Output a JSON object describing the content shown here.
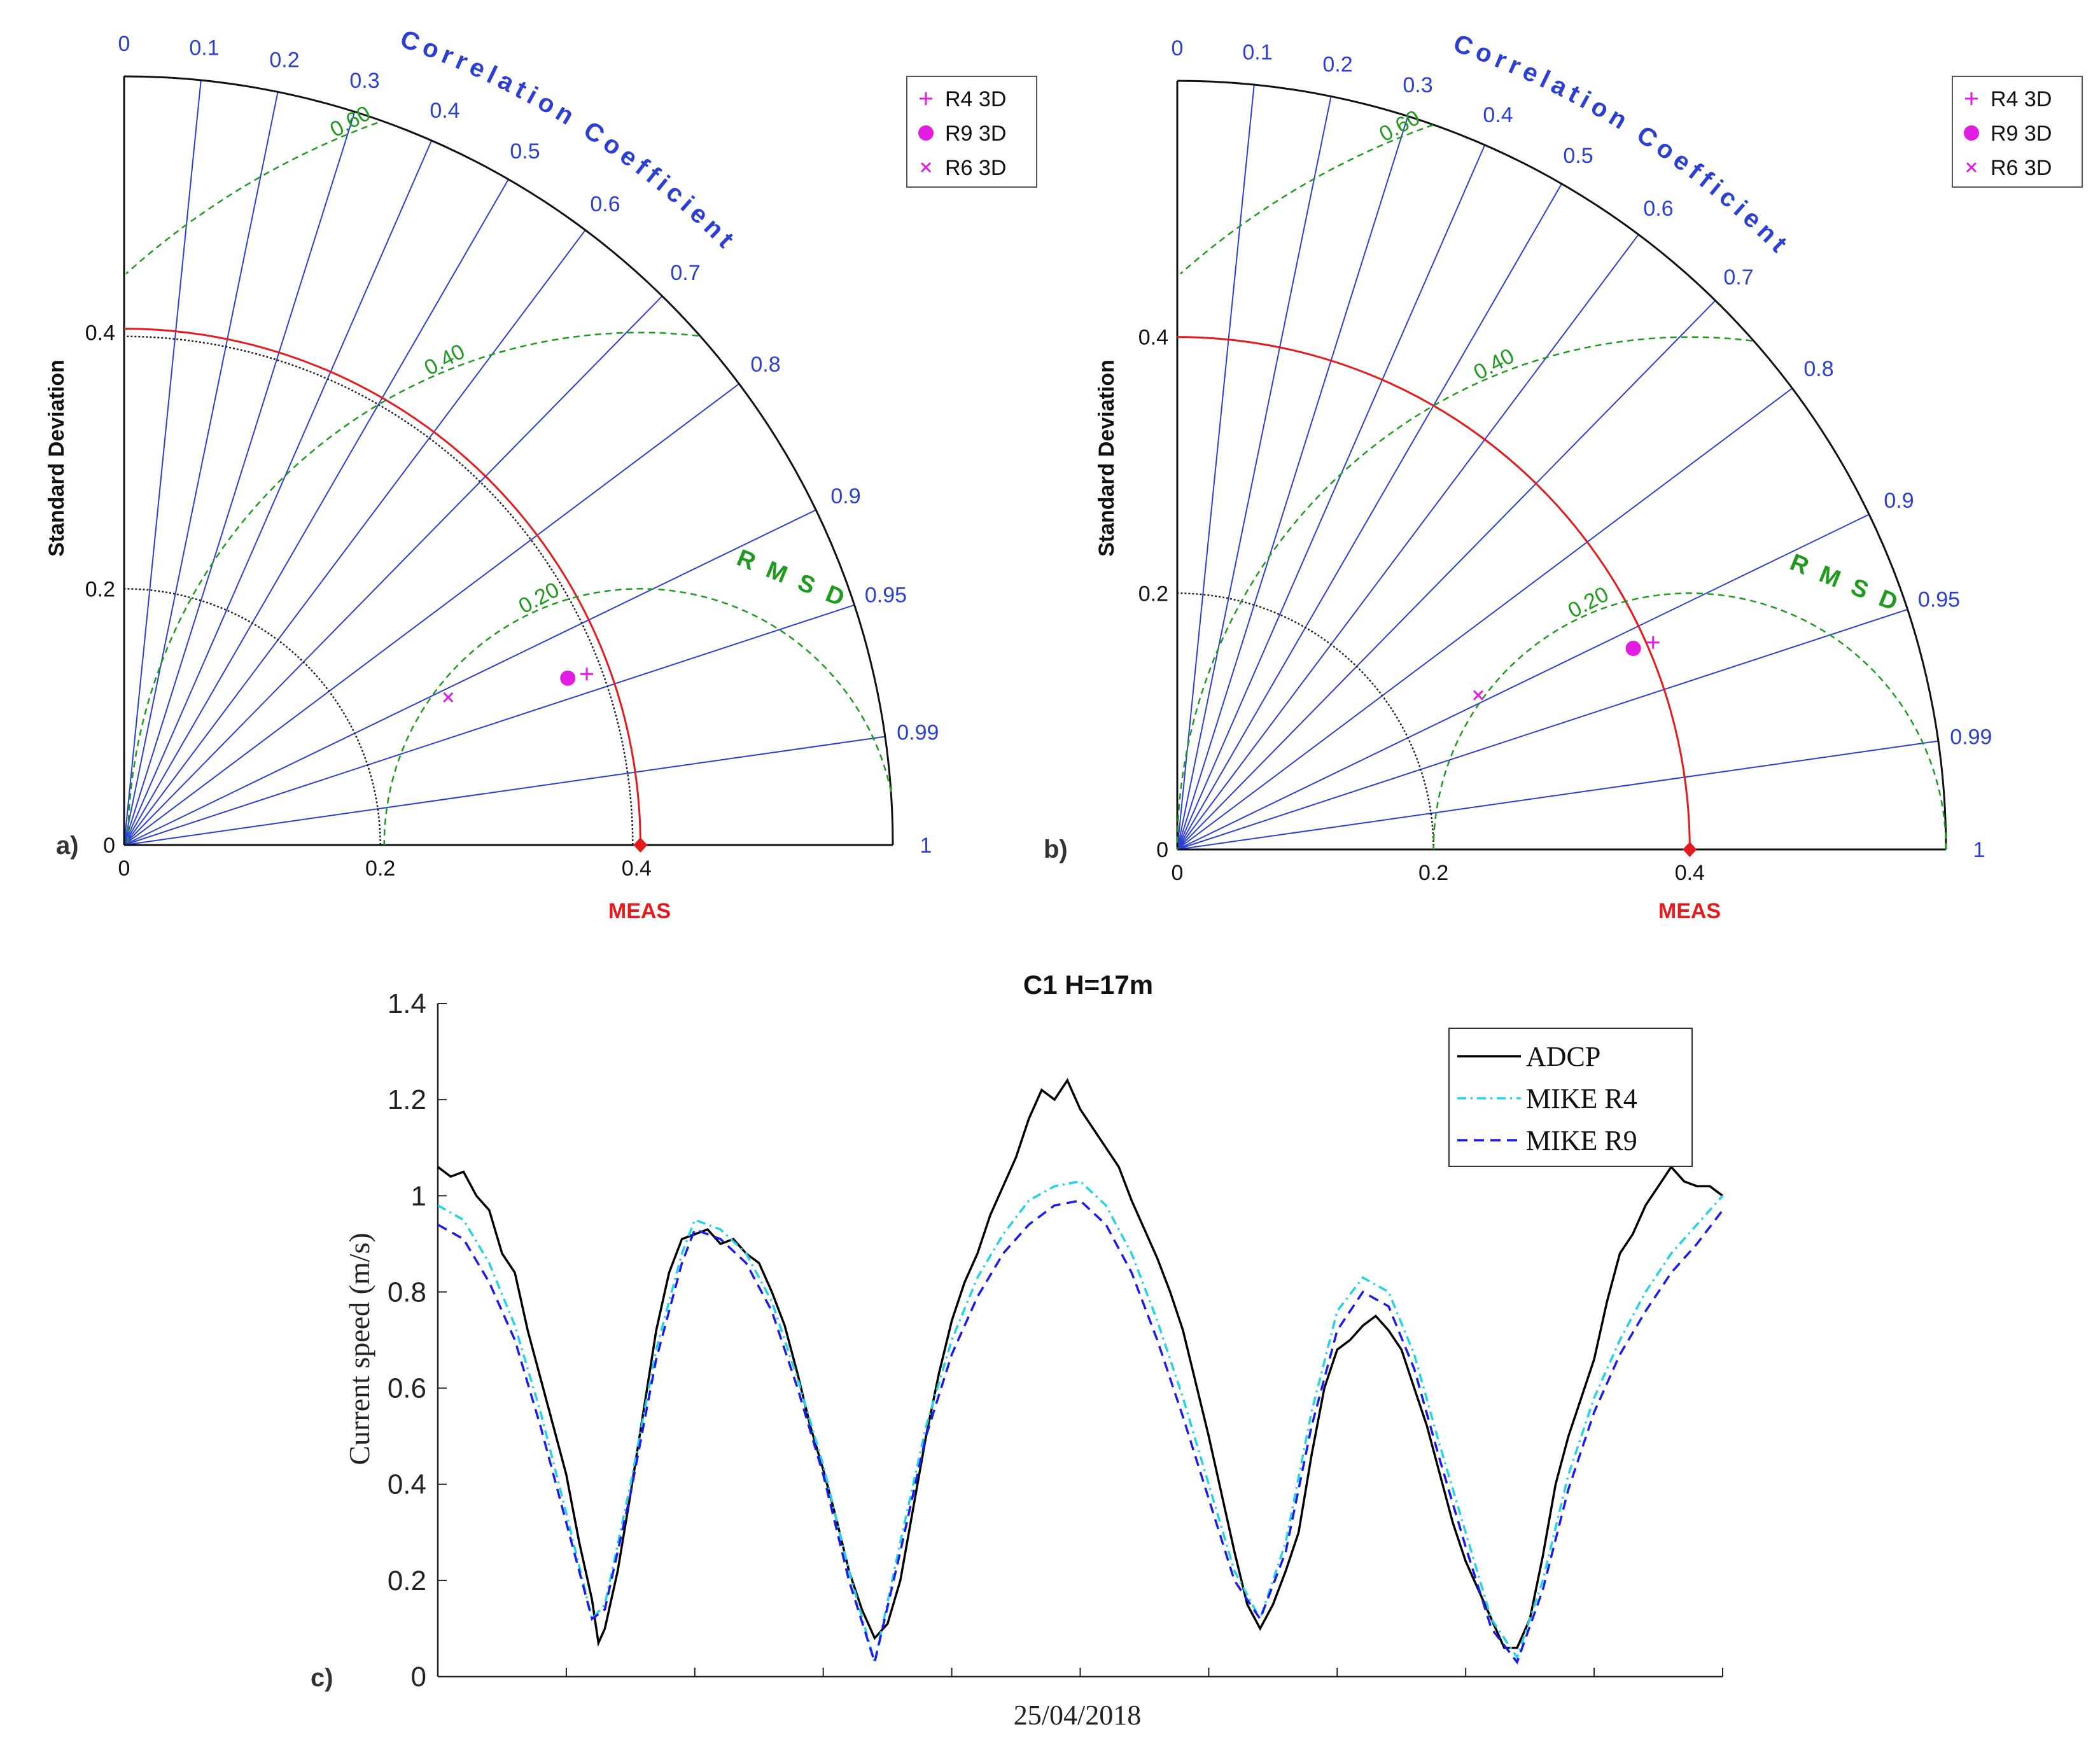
{
  "chart_data": [
    {
      "type": "taylor",
      "panel_label": "a)",
      "xlabel": "MEAS",
      "ylabel": "Standard Deviation",
      "correlation_label": "Correlation Coefficient",
      "rmsd_label": "RMSD",
      "std_ticks": [
        0,
        0.2,
        0.4
      ],
      "std_tick_labels": [
        "0",
        "0.2",
        "0.4"
      ],
      "std_max": 0.6,
      "correlation_ticks": [
        0,
        0.1,
        0.2,
        0.3,
        0.4,
        0.5,
        0.6,
        0.7,
        0.8,
        0.9,
        0.95,
        0.99,
        1
      ],
      "correlation_tick_labels": [
        "0",
        "0.1",
        "0.2",
        "0.3",
        "0.4",
        "0.5",
        "0.6",
        "0.7",
        "0.8",
        "0.9",
        "0.95",
        "0.99",
        "1"
      ],
      "rmsd_contours": [
        0.2,
        0.4,
        0.6
      ],
      "rmsd_labels": [
        "0.20",
        "0.40",
        "0.60"
      ],
      "reference_std": 0.403,
      "reference_std_secondary": 0.397,
      "series": [
        {
          "name": "R4 3D",
          "marker": "+",
          "std": 0.385,
          "corr": 0.938
        },
        {
          "name": "R9 3D",
          "marker": "o",
          "std": 0.37,
          "corr": 0.936
        },
        {
          "name": "R6 3D",
          "marker": "x",
          "std": 0.278,
          "corr": 0.91
        }
      ]
    },
    {
      "type": "taylor",
      "panel_label": "b)",
      "xlabel": "MEAS",
      "ylabel": "Standard Deviation",
      "correlation_label": "Correlation Coefficient",
      "rmsd_label": "RMSD",
      "std_ticks": [
        0,
        0.2,
        0.4
      ],
      "std_tick_labels": [
        "0",
        "0.2",
        "0.4"
      ],
      "std_max": 0.6,
      "correlation_ticks": [
        0,
        0.1,
        0.2,
        0.3,
        0.4,
        0.5,
        0.6,
        0.7,
        0.8,
        0.9,
        0.95,
        0.99,
        1
      ],
      "correlation_tick_labels": [
        "0",
        "0.1",
        "0.2",
        "0.3",
        "0.4",
        "0.5",
        "0.6",
        "0.7",
        "0.8",
        "0.9",
        "0.95",
        "0.99",
        "1"
      ],
      "rmsd_contours": [
        0.2,
        0.4,
        0.6
      ],
      "rmsd_labels": [
        "0.20",
        "0.40",
        "0.60"
      ],
      "reference_std": 0.4,
      "series": [
        {
          "name": "R4 3D",
          "marker": "+",
          "std": 0.405,
          "corr": 0.917
        },
        {
          "name": "R9 3D",
          "marker": "o",
          "std": 0.389,
          "corr": 0.915
        },
        {
          "name": "R6 3D",
          "marker": "x",
          "std": 0.264,
          "corr": 0.89
        }
      ]
    },
    {
      "type": "line",
      "panel_label": "c)",
      "title": "C1 H=17m",
      "xlabel": "25/04/2018",
      "ylabel": "Current speed (m/s)",
      "ylim": [
        0,
        1.4
      ],
      "y_ticks": [
        0,
        0.2,
        0.4,
        0.6,
        0.8,
        1,
        1.2,
        1.4
      ],
      "y_tick_labels": [
        "0",
        "0.2",
        "0.4",
        "0.6",
        "0.8",
        "1",
        "1.2",
        "1.4"
      ],
      "x_minor_tick_count": 10,
      "series": [
        {
          "name": "ADCP",
          "color": "#000000",
          "style": "solid",
          "points": [
            [
              0,
              1.06
            ],
            [
              0.01,
              1.04
            ],
            [
              0.02,
              1.05
            ],
            [
              0.03,
              1.0
            ],
            [
              0.04,
              0.97
            ],
            [
              0.05,
              0.88
            ],
            [
              0.06,
              0.84
            ],
            [
              0.07,
              0.72
            ],
            [
              0.08,
              0.62
            ],
            [
              0.09,
              0.52
            ],
            [
              0.1,
              0.42
            ],
            [
              0.11,
              0.28
            ],
            [
              0.12,
              0.16
            ],
            [
              0.125,
              0.07
            ],
            [
              0.13,
              0.1
            ],
            [
              0.14,
              0.22
            ],
            [
              0.15,
              0.38
            ],
            [
              0.16,
              0.55
            ],
            [
              0.17,
              0.72
            ],
            [
              0.18,
              0.84
            ],
            [
              0.19,
              0.91
            ],
            [
              0.2,
              0.92
            ],
            [
              0.21,
              0.93
            ],
            [
              0.22,
              0.9
            ],
            [
              0.23,
              0.91
            ],
            [
              0.24,
              0.88
            ],
            [
              0.25,
              0.86
            ],
            [
              0.26,
              0.8
            ],
            [
              0.27,
              0.73
            ],
            [
              0.28,
              0.63
            ],
            [
              0.29,
              0.52
            ],
            [
              0.3,
              0.43
            ],
            [
              0.31,
              0.33
            ],
            [
              0.32,
              0.22
            ],
            [
              0.33,
              0.14
            ],
            [
              0.34,
              0.08
            ],
            [
              0.35,
              0.11
            ],
            [
              0.36,
              0.2
            ],
            [
              0.37,
              0.35
            ],
            [
              0.38,
              0.5
            ],
            [
              0.39,
              0.63
            ],
            [
              0.4,
              0.74
            ],
            [
              0.41,
              0.82
            ],
            [
              0.42,
              0.88
            ],
            [
              0.43,
              0.96
            ],
            [
              0.44,
              1.02
            ],
            [
              0.45,
              1.08
            ],
            [
              0.46,
              1.16
            ],
            [
              0.47,
              1.22
            ],
            [
              0.48,
              1.2
            ],
            [
              0.49,
              1.24
            ],
            [
              0.5,
              1.18
            ],
            [
              0.51,
              1.14
            ],
            [
              0.52,
              1.1
            ],
            [
              0.53,
              1.06
            ],
            [
              0.54,
              0.99
            ],
            [
              0.55,
              0.93
            ],
            [
              0.56,
              0.87
            ],
            [
              0.57,
              0.8
            ],
            [
              0.58,
              0.72
            ],
            [
              0.59,
              0.61
            ],
            [
              0.6,
              0.5
            ],
            [
              0.61,
              0.38
            ],
            [
              0.62,
              0.26
            ],
            [
              0.63,
              0.15
            ],
            [
              0.64,
              0.1
            ],
            [
              0.65,
              0.15
            ],
            [
              0.66,
              0.22
            ],
            [
              0.67,
              0.3
            ],
            [
              0.68,
              0.46
            ],
            [
              0.69,
              0.6
            ],
            [
              0.7,
              0.68
            ],
            [
              0.71,
              0.7
            ],
            [
              0.72,
              0.73
            ],
            [
              0.73,
              0.75
            ],
            [
              0.74,
              0.72
            ],
            [
              0.75,
              0.68
            ],
            [
              0.76,
              0.6
            ],
            [
              0.77,
              0.52
            ],
            [
              0.78,
              0.42
            ],
            [
              0.79,
              0.32
            ],
            [
              0.8,
              0.24
            ],
            [
              0.81,
              0.18
            ],
            [
              0.82,
              0.12
            ],
            [
              0.83,
              0.06
            ],
            [
              0.84,
              0.06
            ],
            [
              0.85,
              0.12
            ],
            [
              0.86,
              0.25
            ],
            [
              0.87,
              0.4
            ],
            [
              0.88,
              0.5
            ],
            [
              0.89,
              0.58
            ],
            [
              0.9,
              0.66
            ],
            [
              0.91,
              0.78
            ],
            [
              0.92,
              0.88
            ],
            [
              0.93,
              0.92
            ],
            [
              0.94,
              0.98
            ],
            [
              0.95,
              1.02
            ],
            [
              0.96,
              1.06
            ],
            [
              0.97,
              1.03
            ],
            [
              0.98,
              1.02
            ],
            [
              0.99,
              1.02
            ],
            [
              1,
              1.0
            ]
          ]
        },
        {
          "name": "MIKE R4",
          "color": "#22d3e6",
          "style": "dashdot",
          "points": [
            [
              0,
              0.98
            ],
            [
              0.02,
              0.95
            ],
            [
              0.04,
              0.86
            ],
            [
              0.06,
              0.73
            ],
            [
              0.08,
              0.55
            ],
            [
              0.1,
              0.34
            ],
            [
              0.12,
              0.12
            ],
            [
              0.13,
              0.15
            ],
            [
              0.15,
              0.4
            ],
            [
              0.17,
              0.68
            ],
            [
              0.19,
              0.88
            ],
            [
              0.2,
              0.95
            ],
            [
              0.22,
              0.93
            ],
            [
              0.24,
              0.88
            ],
            [
              0.26,
              0.78
            ],
            [
              0.28,
              0.62
            ],
            [
              0.3,
              0.44
            ],
            [
              0.32,
              0.22
            ],
            [
              0.34,
              0.03
            ],
            [
              0.36,
              0.28
            ],
            [
              0.38,
              0.52
            ],
            [
              0.4,
              0.7
            ],
            [
              0.42,
              0.83
            ],
            [
              0.44,
              0.92
            ],
            [
              0.46,
              0.99
            ],
            [
              0.48,
              1.02
            ],
            [
              0.5,
              1.03
            ],
            [
              0.52,
              0.98
            ],
            [
              0.54,
              0.88
            ],
            [
              0.56,
              0.74
            ],
            [
              0.58,
              0.58
            ],
            [
              0.6,
              0.4
            ],
            [
              0.62,
              0.22
            ],
            [
              0.64,
              0.12
            ],
            [
              0.66,
              0.28
            ],
            [
              0.68,
              0.55
            ],
            [
              0.7,
              0.76
            ],
            [
              0.72,
              0.83
            ],
            [
              0.74,
              0.8
            ],
            [
              0.76,
              0.67
            ],
            [
              0.78,
              0.48
            ],
            [
              0.8,
              0.3
            ],
            [
              0.82,
              0.12
            ],
            [
              0.84,
              0.04
            ],
            [
              0.86,
              0.2
            ],
            [
              0.88,
              0.42
            ],
            [
              0.9,
              0.58
            ],
            [
              0.92,
              0.7
            ],
            [
              0.94,
              0.8
            ],
            [
              0.96,
              0.88
            ],
            [
              0.98,
              0.94
            ],
            [
              1,
              1.0
            ]
          ]
        },
        {
          "name": "MIKE R9",
          "color": "#1a1aee",
          "style": "dashed",
          "points": [
            [
              0,
              0.94
            ],
            [
              0.02,
              0.91
            ],
            [
              0.04,
              0.82
            ],
            [
              0.06,
              0.7
            ],
            [
              0.08,
              0.52
            ],
            [
              0.1,
              0.32
            ],
            [
              0.12,
              0.12
            ],
            [
              0.13,
              0.14
            ],
            [
              0.15,
              0.38
            ],
            [
              0.17,
              0.66
            ],
            [
              0.19,
              0.86
            ],
            [
              0.2,
              0.93
            ],
            [
              0.22,
              0.91
            ],
            [
              0.24,
              0.86
            ],
            [
              0.26,
              0.76
            ],
            [
              0.28,
              0.6
            ],
            [
              0.3,
              0.42
            ],
            [
              0.32,
              0.2
            ],
            [
              0.34,
              0.03
            ],
            [
              0.36,
              0.26
            ],
            [
              0.38,
              0.5
            ],
            [
              0.4,
              0.67
            ],
            [
              0.42,
              0.79
            ],
            [
              0.44,
              0.88
            ],
            [
              0.46,
              0.94
            ],
            [
              0.48,
              0.98
            ],
            [
              0.5,
              0.99
            ],
            [
              0.52,
              0.94
            ],
            [
              0.54,
              0.84
            ],
            [
              0.56,
              0.7
            ],
            [
              0.58,
              0.54
            ],
            [
              0.6,
              0.37
            ],
            [
              0.62,
              0.2
            ],
            [
              0.64,
              0.12
            ],
            [
              0.66,
              0.26
            ],
            [
              0.68,
              0.52
            ],
            [
              0.7,
              0.72
            ],
            [
              0.72,
              0.8
            ],
            [
              0.74,
              0.77
            ],
            [
              0.76,
              0.64
            ],
            [
              0.78,
              0.45
            ],
            [
              0.8,
              0.27
            ],
            [
              0.82,
              0.1
            ],
            [
              0.84,
              0.03
            ],
            [
              0.86,
              0.18
            ],
            [
              0.88,
              0.39
            ],
            [
              0.9,
              0.55
            ],
            [
              0.92,
              0.67
            ],
            [
              0.94,
              0.76
            ],
            [
              0.96,
              0.84
            ],
            [
              0.98,
              0.9
            ],
            [
              1,
              0.97
            ]
          ]
        }
      ]
    }
  ]
}
